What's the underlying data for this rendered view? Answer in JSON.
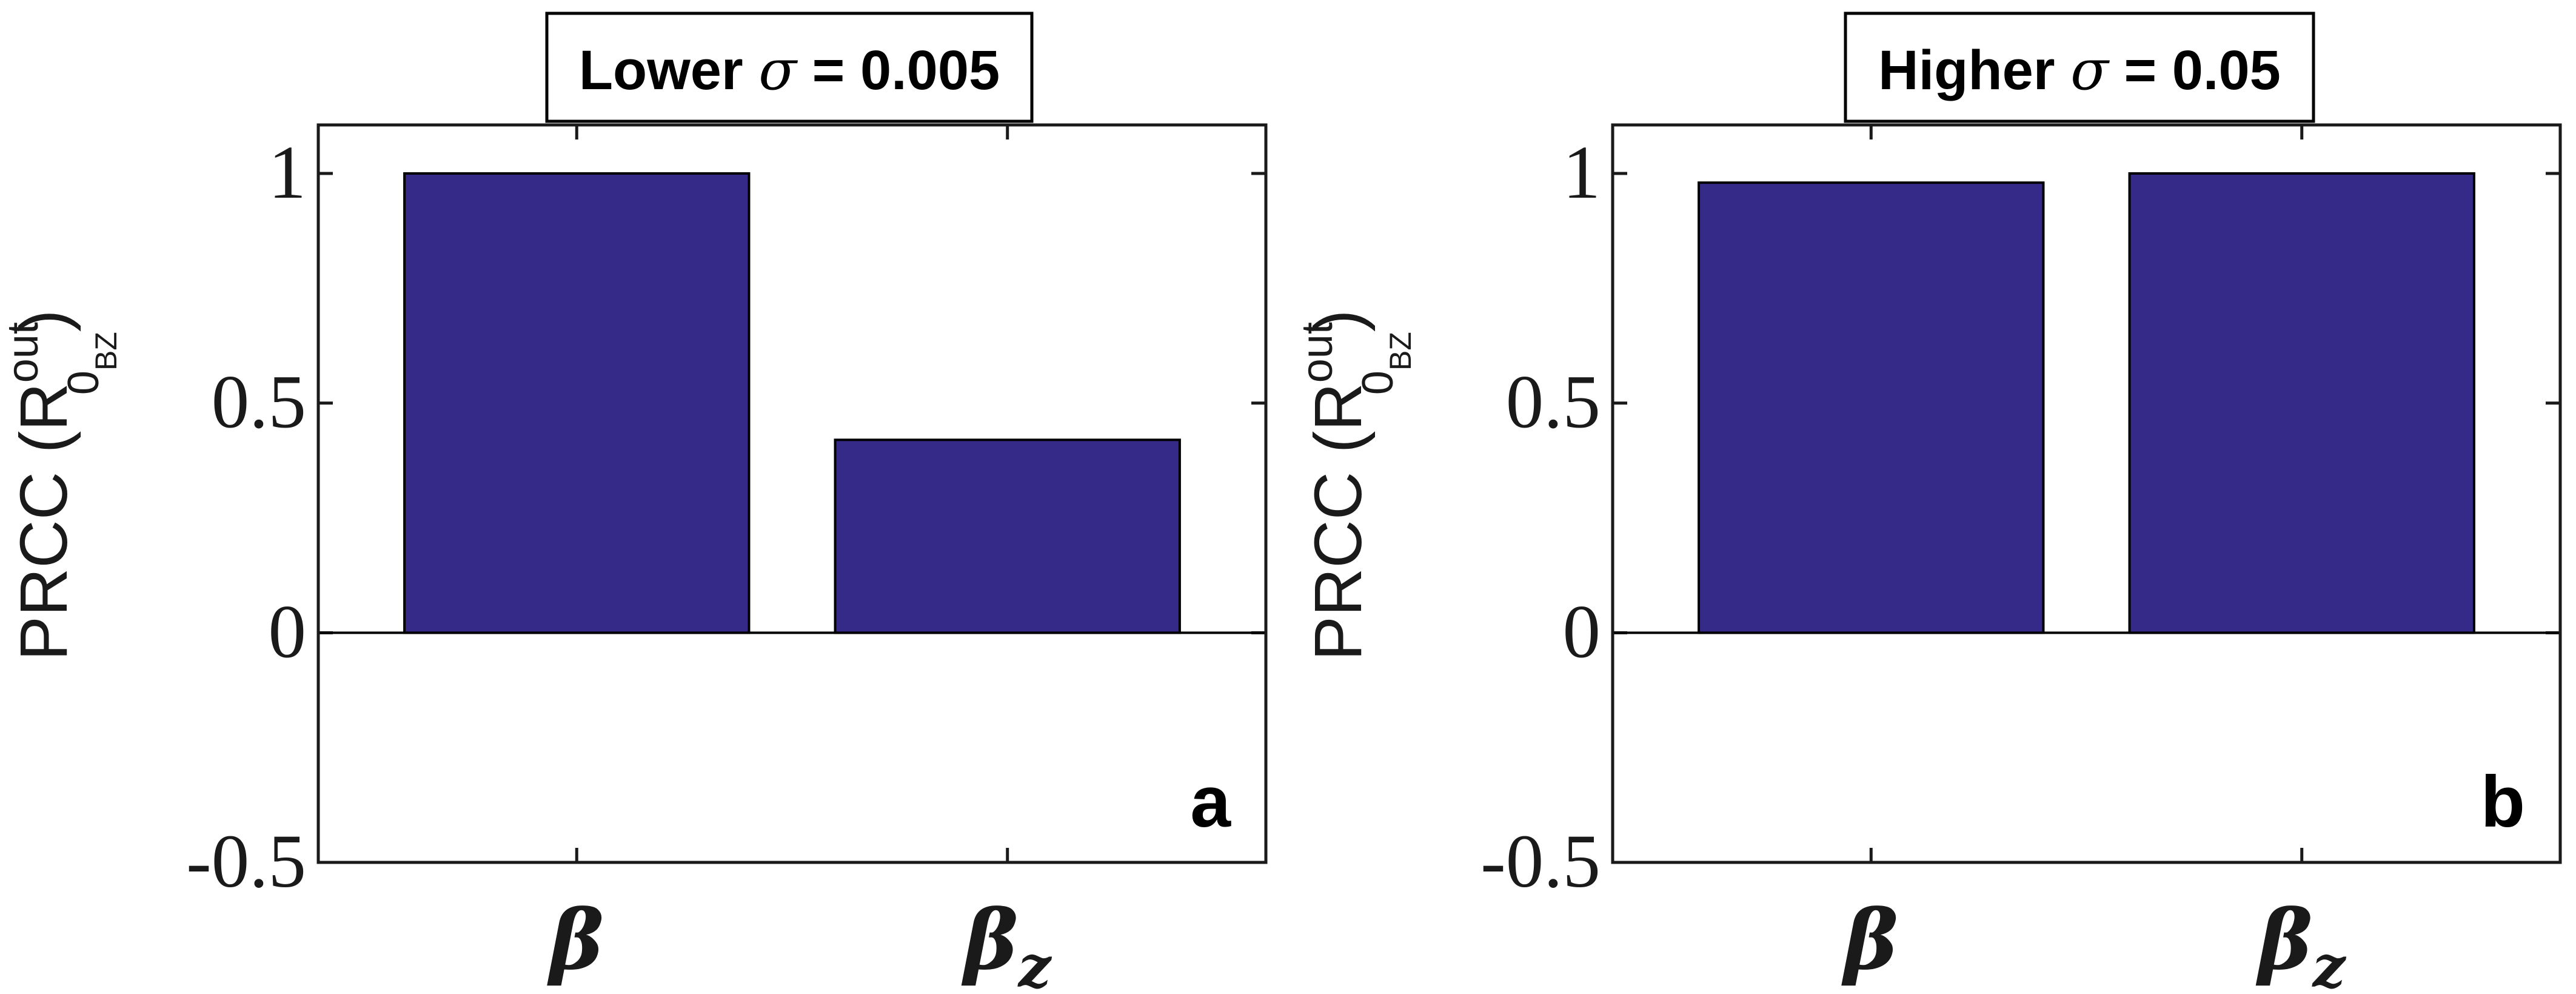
{
  "chart_data": [
    {
      "type": "bar",
      "title": {
        "prefix": "Lower ",
        "sigma": "σ",
        "suffix": " = 0.005"
      },
      "panel_label": "a",
      "ylabel": {
        "text": "PRCC (R",
        "sub": "0",
        "subsub": "BZ",
        "sup": "out",
        "close": ")"
      },
      "categories": [
        {
          "main": "β",
          "sub": ""
        },
        {
          "main": "β",
          "sub": "z"
        }
      ],
      "values": [
        1.0,
        0.42
      ],
      "ylim": [
        -0.5,
        1
      ],
      "yticks": [
        "1",
        "0.5",
        "0",
        "-0.5"
      ],
      "bar_color": "#352a87",
      "grid": false
    },
    {
      "type": "bar",
      "title": {
        "prefix": "Higher ",
        "sigma": "σ",
        "suffix": " = 0.05"
      },
      "panel_label": "b",
      "ylabel": {
        "text": "PRCC (R",
        "sub": "0",
        "subsub": "BZ",
        "sup": "out",
        "close": ")"
      },
      "categories": [
        {
          "main": "β",
          "sub": ""
        },
        {
          "main": "β",
          "sub": "z"
        }
      ],
      "values": [
        0.98,
        1.0
      ],
      "ylim": [
        -0.5,
        1
      ],
      "yticks": [
        "1",
        "0.5",
        "0",
        "-0.5"
      ],
      "bar_color": "#352a87",
      "grid": false
    }
  ]
}
